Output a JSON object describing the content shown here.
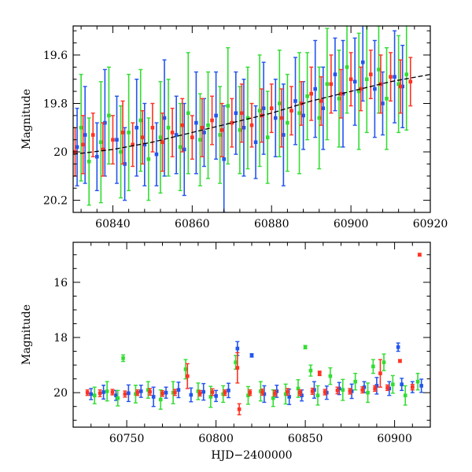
{
  "chart_data": [
    {
      "type": "scatter",
      "panel": "top",
      "xlabel": "",
      "ylabel": "Magnitude",
      "xlim": [
        60830,
        60920
      ],
      "ylim": [
        20.25,
        19.48
      ],
      "y_inverted": true,
      "xticks": [
        60840,
        60860,
        60880,
        60900,
        60920
      ],
      "yticks": [
        19.6,
        19.8,
        20,
        20.2
      ],
      "xtick_labels": [
        "60840",
        "60860",
        "60880",
        "60900",
        "60920"
      ],
      "ytick_labels": [
        "19.6",
        "19.8",
        "20",
        "20.2"
      ],
      "grid": false,
      "errorbars": true,
      "trend_curve": {
        "color": "#000000",
        "x": [
          60830,
          60840,
          60850,
          60860,
          60870,
          60880,
          60890,
          60900,
          60910,
          60920
        ],
        "y": [
          20.01,
          19.99,
          19.96,
          19.92,
          19.88,
          19.84,
          19.79,
          19.75,
          19.71,
          19.68
        ]
      },
      "series": [
        {
          "color": "#2255ee",
          "x": [
            60831,
            60833,
            60836,
            60838,
            60841,
            60843,
            60846,
            60848,
            60851,
            60853,
            60856,
            60858,
            60861,
            60863,
            60866,
            60868,
            60871,
            60873,
            60876,
            60878,
            60881,
            60883,
            60886,
            60888,
            60891,
            60893,
            60896,
            60898,
            60901,
            60903,
            60906,
            60908,
            60911,
            60913
          ],
          "y": [
            19.98,
            19.93,
            20.02,
            19.88,
            19.95,
            20.05,
            19.9,
            19.97,
            20.01,
            19.86,
            19.93,
            19.99,
            19.88,
            19.92,
            19.85,
            20.03,
            19.84,
            19.9,
            19.96,
            19.82,
            19.86,
            19.93,
            19.79,
            19.85,
            19.74,
            19.82,
            19.68,
            19.76,
            19.71,
            19.63,
            19.74,
            19.8,
            19.69,
            19.73
          ],
          "err": [
            0.16,
            0.2,
            0.14,
            0.22,
            0.18,
            0.15,
            0.2,
            0.17,
            0.13,
            0.24,
            0.16,
            0.19,
            0.21,
            0.14,
            0.18,
            0.22,
            0.17,
            0.2,
            0.15,
            0.19,
            0.16,
            0.21,
            0.18,
            0.14,
            0.2,
            0.17,
            0.15,
            0.22,
            0.18,
            0.16,
            0.2,
            0.13,
            0.19,
            0.17
          ]
        },
        {
          "color": "#33dd33",
          "x": [
            60832,
            60834,
            60837,
            60839,
            60842,
            60844,
            60847,
            60849,
            60852,
            60854,
            60857,
            60859,
            60862,
            60864,
            60867,
            60869,
            60872,
            60874,
            60877,
            60879,
            60882,
            60884,
            60887,
            60889,
            60892,
            60894,
            60897,
            60899,
            60902,
            60904,
            60907,
            60909,
            60912,
            60914
          ],
          "y": [
            19.9,
            20.04,
            19.96,
            19.85,
            20.0,
            19.92,
            19.87,
            20.03,
            19.94,
            19.9,
            19.98,
            19.84,
            19.95,
            19.89,
            19.93,
            19.81,
            19.91,
            19.86,
            19.83,
            19.94,
            19.8,
            19.88,
            19.84,
            19.77,
            19.86,
            19.72,
            19.78,
            19.65,
            19.75,
            19.7,
            19.66,
            19.78,
            19.72,
            19.68
          ],
          "err": [
            0.22,
            0.18,
            0.25,
            0.2,
            0.19,
            0.24,
            0.21,
            0.17,
            0.23,
            0.2,
            0.18,
            0.25,
            0.19,
            0.22,
            0.2,
            0.24,
            0.18,
            0.21,
            0.23,
            0.19,
            0.22,
            0.2,
            0.25,
            0.18,
            0.21,
            0.23,
            0.2,
            0.19,
            0.24,
            0.22,
            0.18,
            0.21,
            0.2,
            0.23
          ]
        },
        {
          "color": "#ff3322",
          "x": [
            60830.5,
            60832.5,
            60835,
            60837.5,
            60840,
            60842.5,
            60845,
            60847.5,
            60850,
            60852.5,
            60855,
            60857.5,
            60860,
            60862.5,
            60865,
            60867.5,
            60870,
            60872.5,
            60875,
            60877.5,
            60880,
            60882.5,
            60885,
            60887.5,
            60890,
            60892.5,
            60895,
            60897.5,
            60900,
            60902.5,
            60905,
            60907.5,
            60910,
            60912.5,
            60915
          ],
          "y": [
            20.0,
            19.97,
            19.93,
            19.99,
            19.95,
            19.92,
            19.97,
            19.94,
            19.9,
            19.96,
            19.92,
            19.89,
            19.94,
            19.9,
            19.87,
            19.91,
            19.88,
            19.84,
            19.89,
            19.85,
            19.82,
            19.86,
            19.83,
            19.8,
            19.76,
            19.79,
            19.72,
            19.76,
            19.7,
            19.74,
            19.68,
            19.72,
            19.69,
            19.73,
            19.71
          ],
          "err": [
            0.1,
            0.12,
            0.09,
            0.11,
            0.1,
            0.13,
            0.09,
            0.11,
            0.1,
            0.12,
            0.1,
            0.11,
            0.09,
            0.12,
            0.1,
            0.11,
            0.1,
            0.12,
            0.09,
            0.11,
            0.1,
            0.12,
            0.1,
            0.09,
            0.11,
            0.1,
            0.12,
            0.1,
            0.11,
            0.09,
            0.1,
            0.12,
            0.1,
            0.11,
            0.1
          ]
        }
      ]
    },
    {
      "type": "scatter",
      "panel": "bottom",
      "xlabel": "HJD−2400000",
      "ylabel": "Magnitude",
      "xlim": [
        60720,
        60920
      ],
      "ylim": [
        21.25,
        14.55
      ],
      "y_inverted": true,
      "xticks": [
        60750,
        60800,
        60850,
        60900
      ],
      "yticks": [
        16,
        18,
        20
      ],
      "xtick_labels": [
        "60750",
        "60800",
        "60850",
        "60900"
      ],
      "ytick_labels": [
        "16",
        "18",
        "20"
      ],
      "grid": false,
      "errorbars": true,
      "series": [
        {
          "color": "#2255ee",
          "x": [
            60730,
            60737,
            60744,
            60751,
            60758,
            60765,
            60772,
            60779,
            60786,
            60793,
            60800,
            60807,
            60812,
            60820,
            60827,
            60834,
            60841,
            60848,
            60855,
            60862,
            60869,
            60876,
            60883,
            60890,
            60897,
            60902,
            60904,
            60910,
            60915
          ],
          "y": [
            20.05,
            19.98,
            20.1,
            20.02,
            19.95,
            20.15,
            20.0,
            19.9,
            20.08,
            19.97,
            20.12,
            19.92,
            18.4,
            18.65,
            20.05,
            19.95,
            20.15,
            20.1,
            19.9,
            20.0,
            19.85,
            19.95,
            19.8,
            19.75,
            19.85,
            18.35,
            19.7,
            19.8,
            19.75
          ],
          "err": [
            0.2,
            0.25,
            0.18,
            0.3,
            0.22,
            0.35,
            0.2,
            0.28,
            0.25,
            0.3,
            0.2,
            0.26,
            0.25,
            0.06,
            0.3,
            0.22,
            0.28,
            0.2,
            0.3,
            0.24,
            0.22,
            0.26,
            0.2,
            0.3,
            0.25,
            0.15,
            0.22,
            0.2,
            0.24
          ]
        },
        {
          "color": "#33dd33",
          "x": [
            60732,
            60739,
            60745,
            60748,
            60755,
            60762,
            60769,
            60776,
            60783,
            60790,
            60797,
            60804,
            60811,
            60818,
            60825,
            60832,
            60839,
            60846,
            60850,
            60853,
            60857,
            60864,
            60871,
            60878,
            60885,
            60888,
            60894,
            60899,
            60906,
            60913
          ],
          "y": [
            20.1,
            19.95,
            20.2,
            18.75,
            20.05,
            19.9,
            20.25,
            20.0,
            19.15,
            19.95,
            20.15,
            20.05,
            18.9,
            20.1,
            19.95,
            20.2,
            20.05,
            19.85,
            18.35,
            19.2,
            20.1,
            19.4,
            19.9,
            19.6,
            20.0,
            19.05,
            18.9,
            19.7,
            20.1,
            19.6
          ],
          "err": [
            0.3,
            0.35,
            0.28,
            0.12,
            0.32,
            0.3,
            0.35,
            0.4,
            0.35,
            0.3,
            0.38,
            0.3,
            0.25,
            0.32,
            0.35,
            0.3,
            0.36,
            0.32,
            0.06,
            0.2,
            0.35,
            0.3,
            0.38,
            0.3,
            0.35,
            0.25,
            0.3,
            0.32,
            0.35,
            0.3
          ]
        },
        {
          "color": "#ff3322",
          "x": [
            60728,
            60735,
            60742,
            60749,
            60756,
            60763,
            60770,
            60777,
            60784,
            60791,
            60798,
            60805,
            60812,
            60813,
            60819,
            60826,
            60833,
            60840,
            60847,
            60854,
            60858,
            60861,
            60868,
            60875,
            60882,
            60889,
            60892,
            60896,
            60903,
            60910,
            60914
          ],
          "y": [
            20.0,
            20.02,
            19.98,
            20.05,
            20.0,
            19.97,
            20.03,
            19.99,
            19.4,
            20.02,
            19.98,
            20.0,
            19.1,
            20.6,
            20.0,
            19.98,
            20.02,
            19.97,
            20.0,
            19.95,
            19.3,
            19.98,
            19.92,
            19.95,
            19.9,
            19.85,
            19.3,
            19.82,
            18.85,
            19.8,
            15.0
          ],
          "err": [
            0.1,
            0.12,
            0.1,
            0.11,
            0.1,
            0.12,
            0.1,
            0.11,
            0.45,
            0.1,
            0.12,
            0.1,
            0.55,
            0.2,
            0.1,
            0.11,
            0.1,
            0.12,
            0.1,
            0.11,
            0.08,
            0.1,
            0.12,
            0.1,
            0.11,
            0.1,
            0.5,
            0.1,
            0.05,
            0.1,
            0.05
          ]
        }
      ]
    }
  ]
}
